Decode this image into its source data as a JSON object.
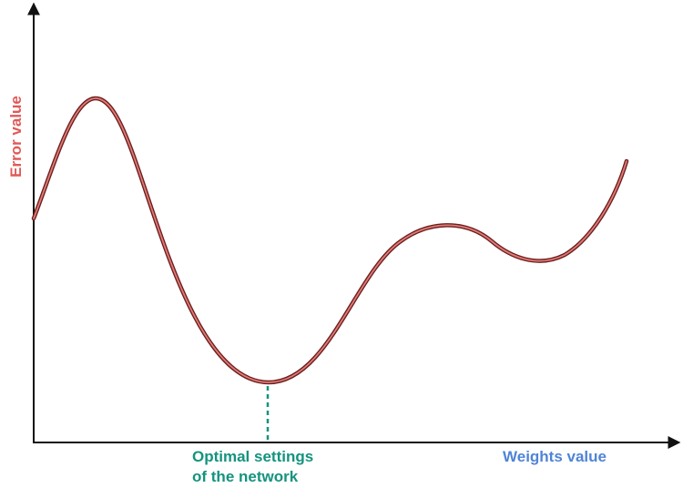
{
  "diagram": {
    "y_axis_label": "Error value",
    "x_axis_label": "Weights value",
    "minimum_label": {
      "line1": "Optimal settings",
      "line2": "of the network"
    },
    "colors": {
      "axis": "#111111",
      "curve_outer": "#6b1e1e",
      "curve_inner": "#e07b76",
      "y_label": "#e05a58",
      "x_label": "#4f84d6",
      "minimum_label": "#14937e",
      "minimum_marker": "#14937e"
    }
  }
}
